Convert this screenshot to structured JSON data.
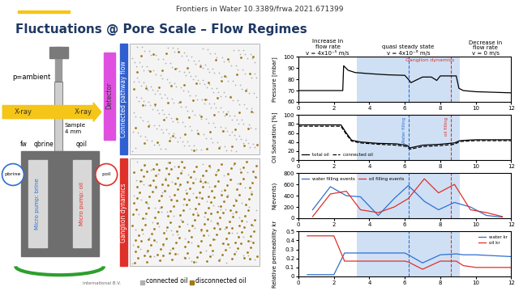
{
  "header": "Frontiers in Water 10.3389/frwa.2021.671399",
  "title": "Fluctuations @ Pore Scale – Flow Regimes",
  "schematic": {
    "pressure_top": "p=ambient",
    "xray_left": "X-ray",
    "xray_right": "X-ray",
    "sample": [
      "Sample",
      "4 mm"
    ],
    "detector": "Detector",
    "flow_labels": [
      "fw",
      "qbrine",
      "qoil"
    ],
    "pressure_brine": "pbrine",
    "pressure_oil": "poil",
    "pump_brine": "Micro pump: brine",
    "pump_oil": "Micro pump: oil",
    "credit": "international B.V."
  },
  "renderings": {
    "top_label": "Connected pathway flow",
    "top_color": "#2f5fd0",
    "bottom_label": "Ganglion dynamics",
    "bottom_color": "#e0302a",
    "legend": [
      {
        "label": "connected oil",
        "color": "#b0b0b0"
      },
      {
        "label": "disconnected oil",
        "color": "#a07818"
      }
    ]
  },
  "phases": {
    "increase": {
      "lines": [
        "Increase in",
        "flow rate"
      ],
      "velocity": "v = 4x10⁻⁵ m/s"
    },
    "steady": {
      "lines": [
        "quasi steady state"
      ],
      "velocity": "v = 4x10⁻⁶ m/s",
      "span": [
        3.3,
        9.1
      ],
      "color": "#cfe0f5"
    },
    "decrease": {
      "lines": [
        "Decrease in",
        "flow rate"
      ],
      "velocity": "v = 0 m/s"
    },
    "markers": [
      {
        "x": 6.2,
        "label": "Water filling",
        "color": "#2e6fd0"
      },
      {
        "x": 8.6,
        "label": "oil filling",
        "color": "#e0302a"
      }
    ],
    "ganglion_label": "Ganglion dynamics"
  },
  "chart_data": [
    {
      "type": "line",
      "y_label": "Pressure [mbar]",
      "xlim": [
        0,
        12
      ],
      "xticks": [
        0,
        2,
        4,
        6,
        8,
        10,
        12
      ],
      "ylim": [
        60,
        100
      ],
      "yticks": [
        60,
        70,
        80,
        90,
        100
      ],
      "series": [
        {
          "color": "#000000",
          "line_style": "solid",
          "x": [
            0,
            2.5,
            2.55,
            2.8,
            3.2,
            4,
            5,
            6,
            6.2,
            6.35,
            6.6,
            7,
            7.5,
            7.8,
            8,
            8.5,
            8.9,
            9.05,
            9.3,
            10,
            11,
            12
          ],
          "values": [
            70,
            70,
            92,
            88,
            86,
            85,
            84,
            83.5,
            80,
            77,
            79,
            82,
            82,
            79,
            83,
            83,
            83,
            72,
            70,
            69,
            68.5,
            68
          ]
        }
      ]
    },
    {
      "type": "line",
      "y_label": "Oil Saturation [%]",
      "xlim": [
        0,
        12
      ],
      "xticks": [
        0,
        2,
        4,
        6,
        8,
        10,
        12
      ],
      "ylim": [
        0,
        100
      ],
      "yticks": [
        0,
        20,
        40,
        60,
        80,
        100
      ],
      "legend": "lower left",
      "series": [
        {
          "name": "total oil",
          "color": "#000000",
          "line_style": "solid",
          "x": [
            0,
            2.4,
            2.7,
            3,
            3.5,
            4.5,
            5.5,
            6.1,
            6.3,
            7,
            8,
            8.8,
            9.1,
            9.5,
            10,
            11,
            12
          ],
          "values": [
            78,
            78,
            60,
            44,
            40,
            37,
            36,
            33,
            27,
            33,
            35,
            38,
            43,
            44,
            45,
            45,
            45
          ]
        },
        {
          "name": "connected oil",
          "color": "#000000",
          "line_style": "dashed",
          "x": [
            0,
            2.4,
            2.7,
            3,
            3.5,
            4.5,
            5.5,
            6.1,
            6.3,
            7,
            8,
            8.8,
            9.1,
            9.5,
            10,
            11,
            12
          ],
          "values": [
            75,
            75,
            57,
            42,
            38,
            35,
            33,
            30,
            24,
            30,
            32,
            35,
            41,
            42,
            43,
            43,
            43
          ]
        }
      ]
    },
    {
      "type": "line",
      "y_label": "N(events)",
      "xlim": [
        0,
        12
      ],
      "xticks": [
        0,
        2,
        4,
        6,
        8,
        10,
        12
      ],
      "ylim": [
        0,
        800
      ],
      "yticks": [
        0,
        200,
        400,
        600,
        800
      ],
      "legend": "upper left",
      "series": [
        {
          "name": "water filling events",
          "color": "#2e6fd0",
          "line_style": "solid",
          "x": [
            0.8,
            1.8,
            2.7,
            3.5,
            4.5,
            5.4,
            6.2,
            7.1,
            7.9,
            8.8,
            9.7,
            10.6,
            11.5
          ],
          "values": [
            150,
            560,
            400,
            380,
            50,
            350,
            580,
            300,
            150,
            280,
            200,
            50,
            20
          ]
        },
        {
          "name": "oil filling events",
          "color": "#e0302a",
          "line_style": "solid",
          "x": [
            0.8,
            1.8,
            2.7,
            3.5,
            4.5,
            5.4,
            6.2,
            7.1,
            7.9,
            8.8,
            9.7,
            10.6,
            11.5
          ],
          "values": [
            30,
            430,
            480,
            150,
            100,
            200,
            350,
            700,
            450,
            600,
            150,
            100,
            30
          ]
        }
      ]
    },
    {
      "type": "line",
      "y_label": "Relative permeability kr",
      "xlim": [
        0,
        12
      ],
      "xticks": [
        0,
        2,
        4,
        6,
        8,
        10,
        12
      ],
      "ylim": [
        0,
        0.5
      ],
      "yticks": [
        0,
        0.1,
        0.2,
        0.3,
        0.4,
        0.5
      ],
      "legend": "upper right",
      "series": [
        {
          "name": "water kr",
          "color": "#2e6fd0",
          "line_style": "solid",
          "x": [
            0.5,
            2,
            2.6,
            3,
            4,
            5,
            6,
            6.2,
            7,
            8,
            8.9,
            9.3,
            10,
            11,
            12
          ],
          "values": [
            0.02,
            0.02,
            0.26,
            0.26,
            0.26,
            0.26,
            0.26,
            0.24,
            0.15,
            0.24,
            0.25,
            0.24,
            0.24,
            0.23,
            0.22
          ]
        },
        {
          "name": "oil kr",
          "color": "#e0302a",
          "line_style": "solid",
          "x": [
            0.5,
            2,
            2.6,
            3,
            4,
            5,
            6,
            6.2,
            7,
            8,
            8.9,
            9.3,
            10,
            11,
            12
          ],
          "values": [
            0.45,
            0.45,
            0.17,
            0.17,
            0.17,
            0.17,
            0.17,
            0.16,
            0.08,
            0.17,
            0.17,
            0.12,
            0.1,
            0.1,
            0.1
          ]
        }
      ]
    }
  ]
}
